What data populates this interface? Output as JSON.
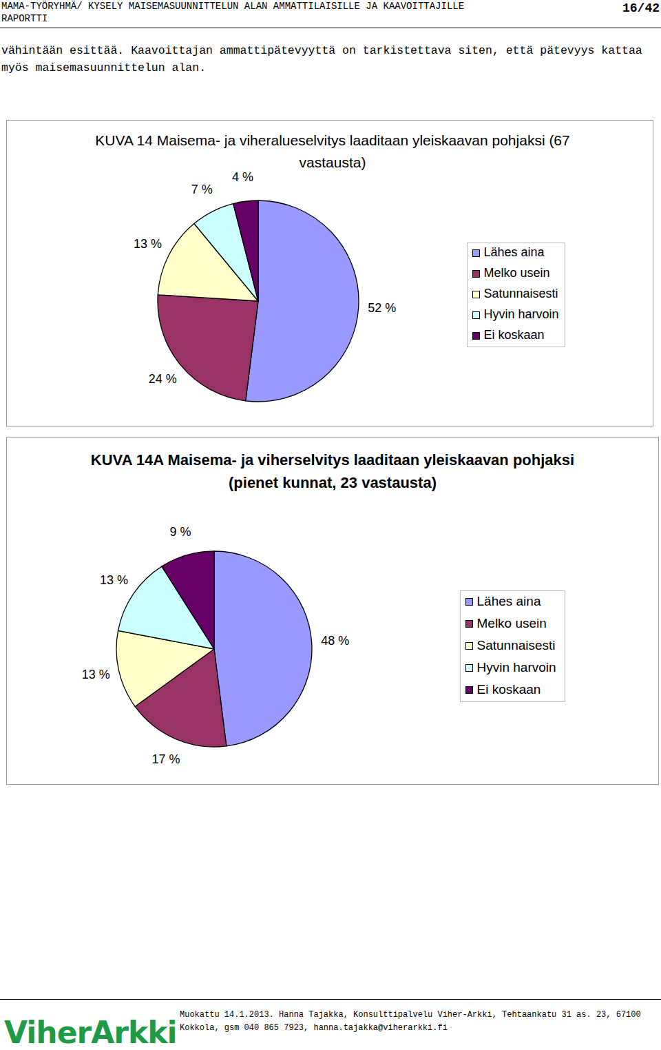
{
  "header": {
    "lines": [
      "MAMA-TYÖRYHMÄ/ KYSELY MAISEMASUUNNITTELUN ALAN AMMATTILAISILLE JA KAAVOITTAJILLE",
      "RAPORTTI"
    ],
    "page": "16/42"
  },
  "body": {
    "lines": [
      "vähintään esittää. Kaavoittajan ammattipätevyyttä on tarkistettava siten, että pätevyys kattaa",
      "myös maisemasuunnittelun alan."
    ]
  },
  "chart_data": [
    {
      "type": "pie",
      "title": "KUVA 14 Maisema- ja viheralueselvitys laaditaan yleiskaavan pohjaksi (67 vastausta)",
      "categories": [
        "Lähes aina",
        "Melko usein",
        "Satunnaisesti",
        "Hyvin harvoin",
        "Ei koskaan"
      ],
      "values": [
        52,
        24,
        13,
        7,
        4
      ],
      "value_labels": [
        "52 %",
        "24 %",
        "13 %",
        "7 %",
        "4 %"
      ],
      "colors": [
        "#9999ff",
        "#993366",
        "#ffffcc",
        "#ccffff",
        "#660066"
      ],
      "data_labels": true,
      "legend": "right"
    },
    {
      "type": "pie",
      "title": "KUVA 14A Maisema- ja viherselvitys laaditaan yleiskaavan pohjaksi (pienet kunnat, 23 vastausta)",
      "categories": [
        "Lähes aina",
        "Melko usein",
        "Satunnaisesti",
        "Hyvin harvoin",
        "Ei koskaan"
      ],
      "values": [
        48,
        17,
        13,
        13,
        9
      ],
      "value_labels": [
        "48 %",
        "17 %",
        "13 %",
        "13 %",
        "9 %"
      ],
      "colors": [
        "#9999ff",
        "#993366",
        "#ffffcc",
        "#ccffff",
        "#660066"
      ],
      "data_labels": true,
      "legend": "right"
    }
  ],
  "footer": {
    "logo": "ViherArkki",
    "lines": [
      "Muokattu 14.1.2013. Hanna Tajakka, Konsulttipalvelu Viher-Arkki, Tehtaankatu 31 as. 23, 67100",
      "Kokkola, gsm 040 865 7923, hanna.tajakka@viherarkki.fi"
    ]
  }
}
